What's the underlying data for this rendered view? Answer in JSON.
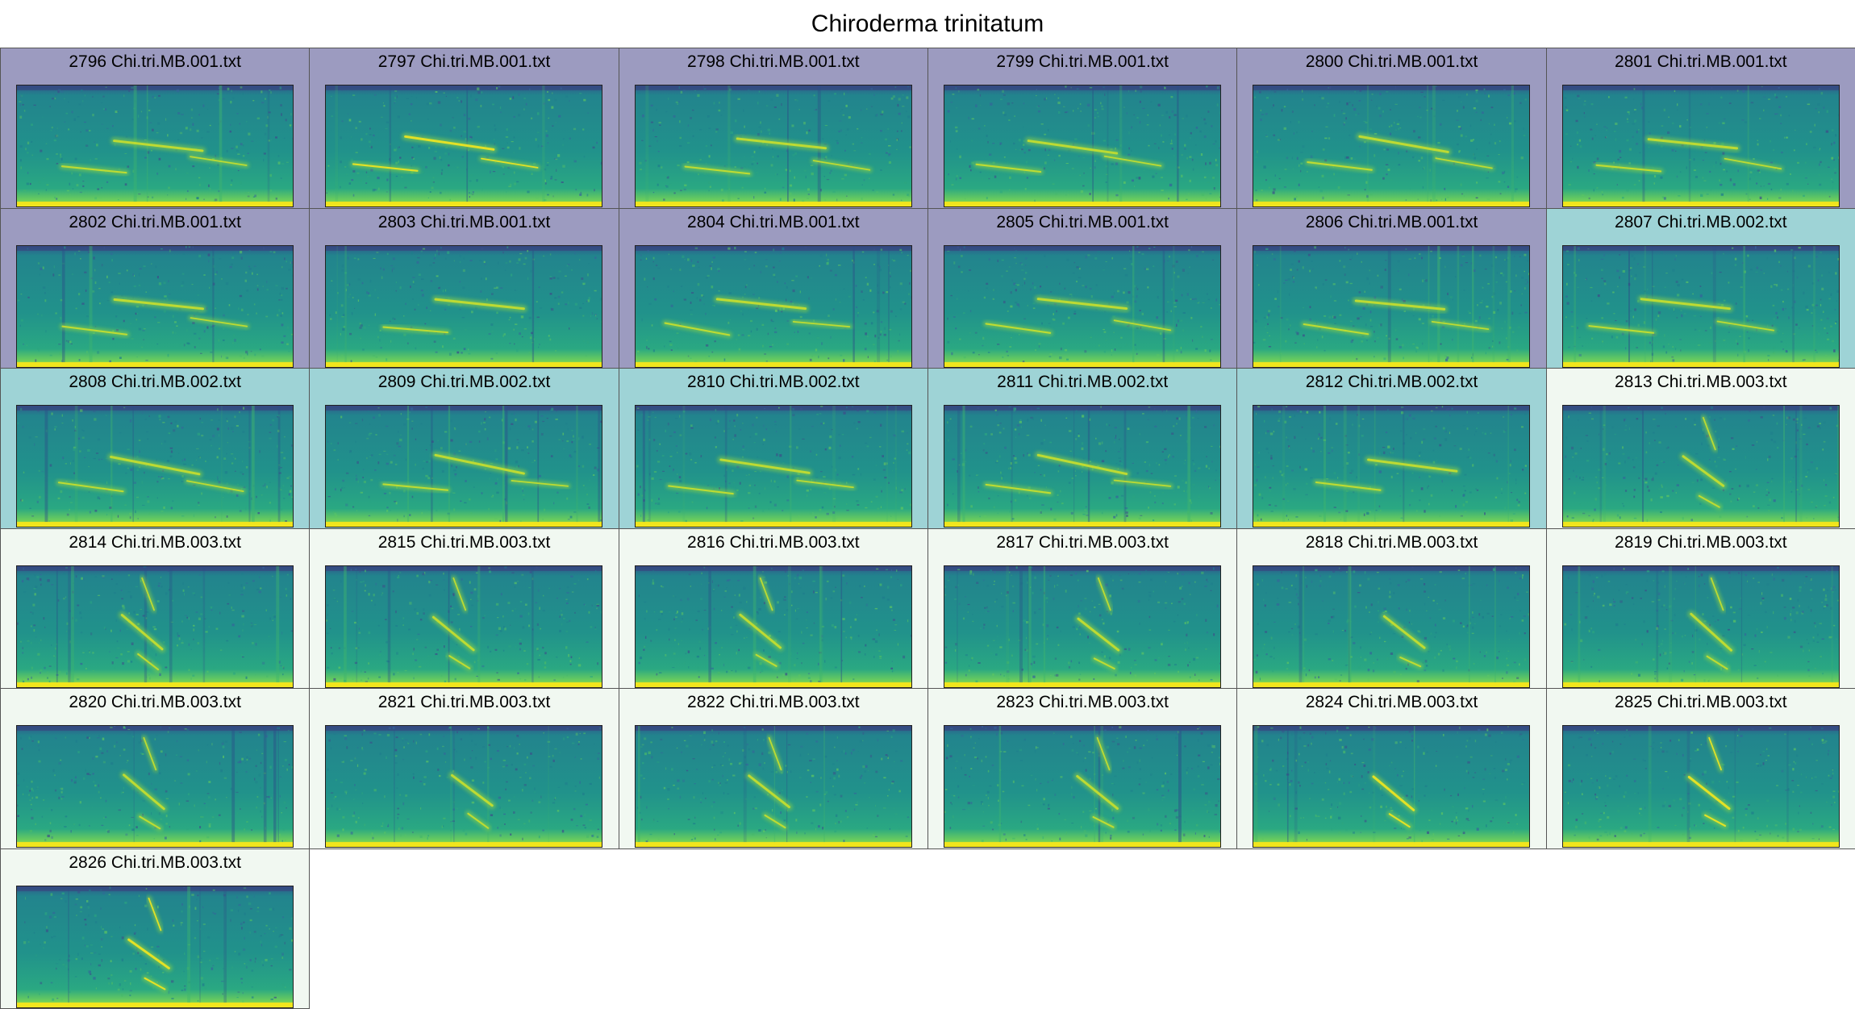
{
  "chart_data": {
    "type": "spectrogram-grid",
    "title": "Chiroderma trinitatum",
    "colormap": "viridis",
    "group_colors": {
      "Chi.tri.MB.001.txt": "#9c9bc0",
      "Chi.tri.MB.002.txt": "#9ed3d6",
      "Chi.tri.MB.003.txt": "#f1f8f1"
    },
    "panels": [
      {
        "id": "2796",
        "label": "2796 Chi.tri.MB.001.txt",
        "file": "Chi.tri.MB.001.txt"
      },
      {
        "id": "2797",
        "label": "2797 Chi.tri.MB.001.txt",
        "file": "Chi.tri.MB.001.txt"
      },
      {
        "id": "2798",
        "label": "2798 Chi.tri.MB.001.txt",
        "file": "Chi.tri.MB.001.txt"
      },
      {
        "id": "2799",
        "label": "2799 Chi.tri.MB.001.txt",
        "file": "Chi.tri.MB.001.txt"
      },
      {
        "id": "2800",
        "label": "2800 Chi.tri.MB.001.txt",
        "file": "Chi.tri.MB.001.txt"
      },
      {
        "id": "2801",
        "label": "2801 Chi.tri.MB.001.txt",
        "file": "Chi.tri.MB.001.txt"
      },
      {
        "id": "2802",
        "label": "2802 Chi.tri.MB.001.txt",
        "file": "Chi.tri.MB.001.txt"
      },
      {
        "id": "2803",
        "label": "2803 Chi.tri.MB.001.txt",
        "file": "Chi.tri.MB.001.txt"
      },
      {
        "id": "2804",
        "label": "2804 Chi.tri.MB.001.txt",
        "file": "Chi.tri.MB.001.txt"
      },
      {
        "id": "2805",
        "label": "2805 Chi.tri.MB.001.txt",
        "file": "Chi.tri.MB.001.txt"
      },
      {
        "id": "2806",
        "label": "2806 Chi.tri.MB.001.txt",
        "file": "Chi.tri.MB.001.txt"
      },
      {
        "id": "2807",
        "label": "2807 Chi.tri.MB.002.txt",
        "file": "Chi.tri.MB.002.txt"
      },
      {
        "id": "2808",
        "label": "2808 Chi.tri.MB.002.txt",
        "file": "Chi.tri.MB.002.txt"
      },
      {
        "id": "2809",
        "label": "2809 Chi.tri.MB.002.txt",
        "file": "Chi.tri.MB.002.txt"
      },
      {
        "id": "2810",
        "label": "2810 Chi.tri.MB.002.txt",
        "file": "Chi.tri.MB.002.txt"
      },
      {
        "id": "2811",
        "label": "2811 Chi.tri.MB.002.txt",
        "file": "Chi.tri.MB.002.txt"
      },
      {
        "id": "2812",
        "label": "2812 Chi.tri.MB.002.txt",
        "file": "Chi.tri.MB.002.txt"
      },
      {
        "id": "2813",
        "label": "2813 Chi.tri.MB.003.txt",
        "file": "Chi.tri.MB.003.txt"
      },
      {
        "id": "2814",
        "label": "2814 Chi.tri.MB.003.txt",
        "file": "Chi.tri.MB.003.txt"
      },
      {
        "id": "2815",
        "label": "2815 Chi.tri.MB.003.txt",
        "file": "Chi.tri.MB.003.txt"
      },
      {
        "id": "2816",
        "label": "2816 Chi.tri.MB.003.txt",
        "file": "Chi.tri.MB.003.txt"
      },
      {
        "id": "2817",
        "label": "2817 Chi.tri.MB.003.txt",
        "file": "Chi.tri.MB.003.txt"
      },
      {
        "id": "2818",
        "label": "2818 Chi.tri.MB.003.txt",
        "file": "Chi.tri.MB.003.txt"
      },
      {
        "id": "2819",
        "label": "2819 Chi.tri.MB.003.txt",
        "file": "Chi.tri.MB.003.txt"
      },
      {
        "id": "2820",
        "label": "2820 Chi.tri.MB.003.txt",
        "file": "Chi.tri.MB.003.txt"
      },
      {
        "id": "2821",
        "label": "2821 Chi.tri.MB.003.txt",
        "file": "Chi.tri.MB.003.txt"
      },
      {
        "id": "2822",
        "label": "2822 Chi.tri.MB.003.txt",
        "file": "Chi.tri.MB.003.txt"
      },
      {
        "id": "2823",
        "label": "2823 Chi.tri.MB.003.txt",
        "file": "Chi.tri.MB.003.txt"
      },
      {
        "id": "2824",
        "label": "2824 Chi.tri.MB.003.txt",
        "file": "Chi.tri.MB.003.txt"
      },
      {
        "id": "2825",
        "label": "2825 Chi.tri.MB.003.txt",
        "file": "Chi.tri.MB.003.txt"
      },
      {
        "id": "2826",
        "label": "2826 Chi.tri.MB.003.txt",
        "file": "Chi.tri.MB.003.txt"
      }
    ]
  }
}
